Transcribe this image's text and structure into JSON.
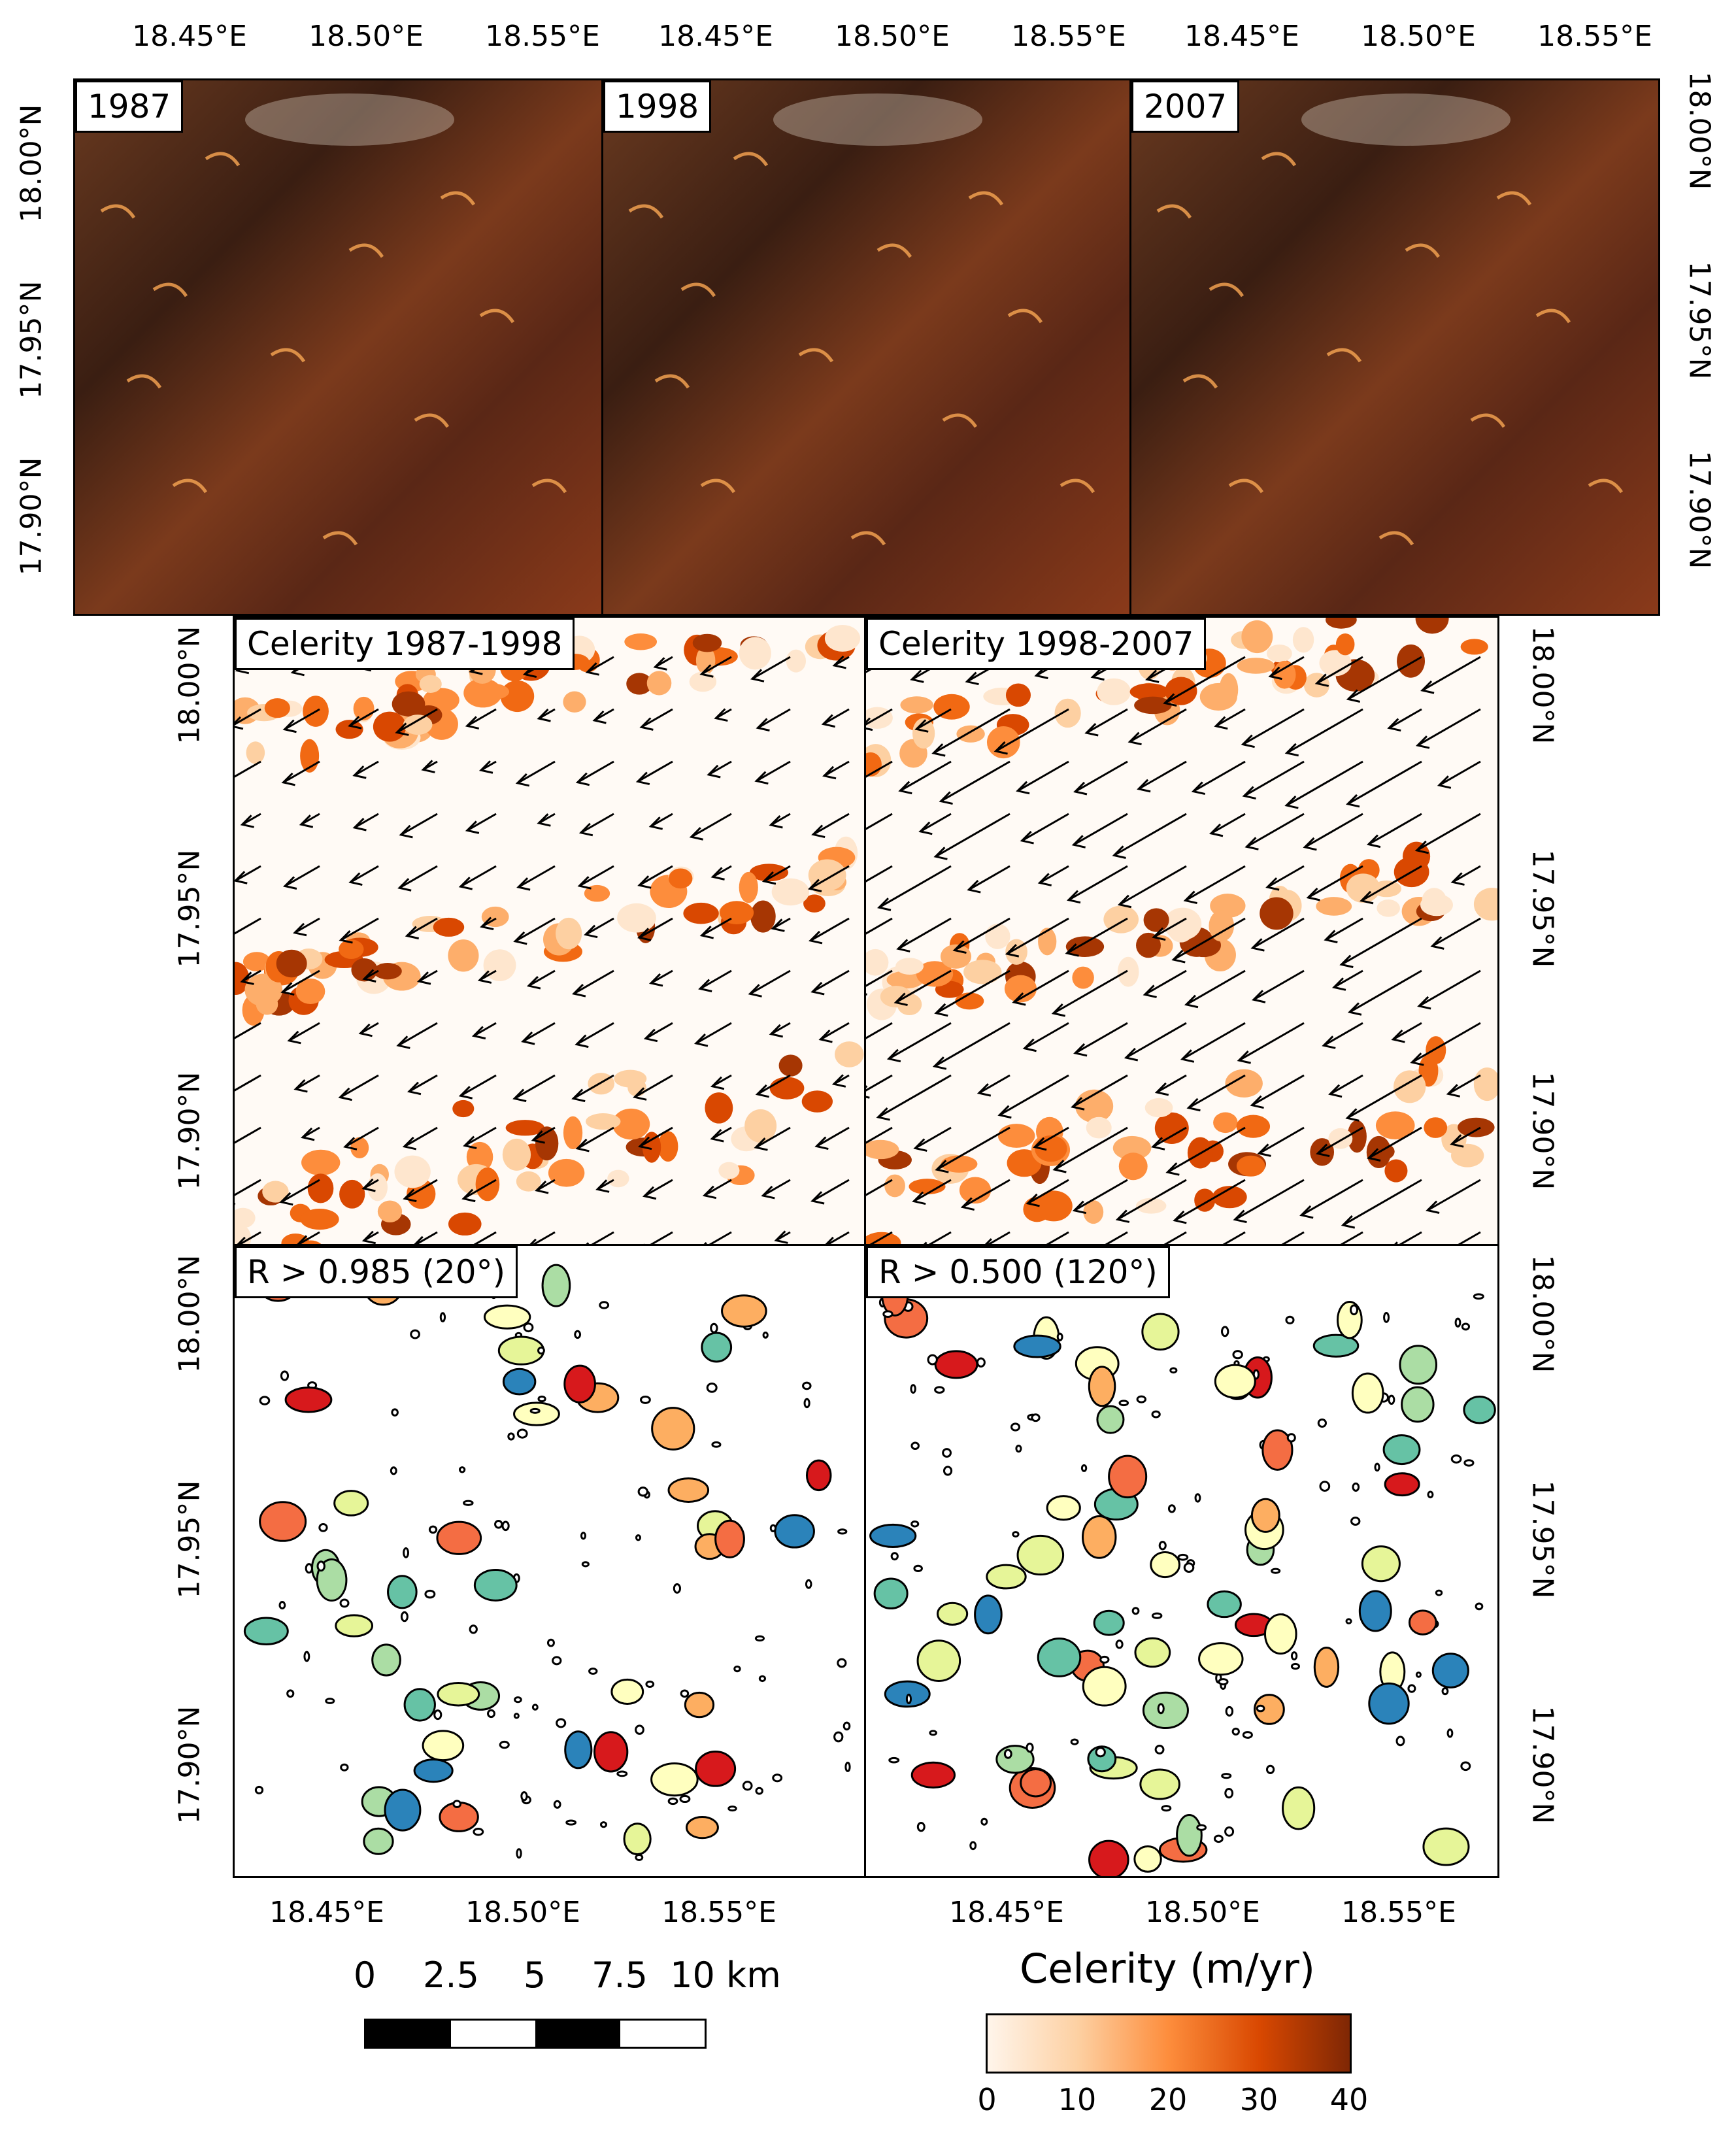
{
  "top_row": {
    "panels": [
      {
        "label": "1987"
      },
      {
        "label": "1998"
      },
      {
        "label": "2007"
      }
    ],
    "lon_ticks": [
      "18.45°E",
      "18.50°E",
      "18.55°E"
    ],
    "lat_ticks": [
      "18.00°N",
      "17.95°N",
      "17.90°N"
    ]
  },
  "middle_row": {
    "panels": [
      {
        "label": "Celerity 1987-1998"
      },
      {
        "label": "Celerity 1998-2007"
      }
    ],
    "lat_ticks": [
      "18.00°N",
      "17.95°N",
      "17.90°N"
    ]
  },
  "bottom_row": {
    "panels": [
      {
        "label": "R > 0.985 (20°)"
      },
      {
        "label": "R > 0.500 (120°)"
      }
    ],
    "lon_ticks": [
      "18.45°E",
      "18.50°E",
      "18.55°E"
    ],
    "lat_ticks": [
      "18.00°N",
      "17.95°N",
      "17.90°N"
    ]
  },
  "scale_bar": {
    "labels": [
      "0",
      "2.5",
      "5",
      "7.5",
      "10 km"
    ],
    "colors": [
      "#000000",
      "#ffffff"
    ]
  },
  "colorbar": {
    "title": "Celerity (m/yr)",
    "ticks": [
      "0",
      "10",
      "20",
      "30",
      "40"
    ],
    "min": 0,
    "max": 40,
    "colors": [
      "#fff5eb",
      "#fdd0a2",
      "#fd8d3c",
      "#d94801",
      "#7f2704"
    ]
  },
  "cluster_colors": [
    "#2b83ba",
    "#abdda4",
    "#ffffbf",
    "#fdae61",
    "#d7191c",
    "#66c2a5",
    "#f46d43",
    "#e6f598"
  ]
}
